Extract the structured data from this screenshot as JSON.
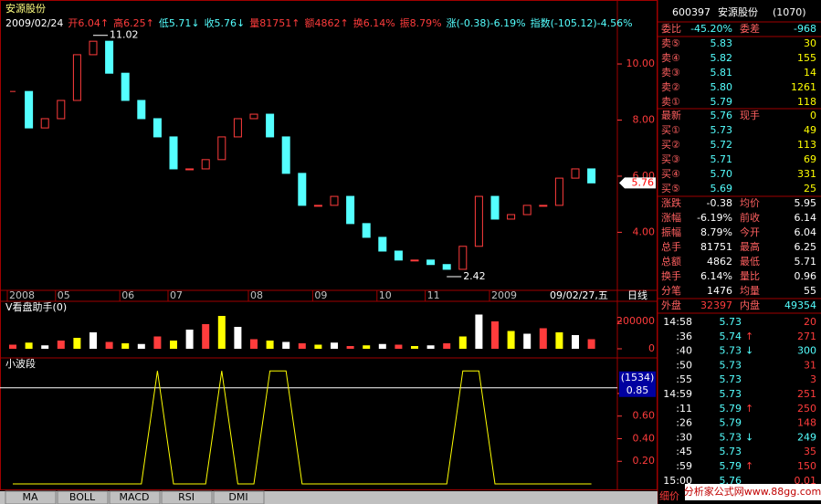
{
  "chart_data": [
    {
      "type": "candlestick",
      "title": "安源股份",
      "categories": [
        "2008",
        null,
        null,
        "05",
        null,
        null,
        null,
        "06",
        null,
        null,
        "07",
        null,
        null,
        null,
        null,
        "08",
        null,
        null,
        null,
        "09",
        null,
        null,
        null,
        "10",
        null,
        null,
        "11",
        null,
        null,
        null,
        "2009",
        null,
        null,
        null,
        null,
        null,
        "09/02/27,五"
      ],
      "values": [
        9.02,
        7.72,
        8.05,
        8.7,
        10.33,
        10.81,
        9.67,
        8.7,
        8.05,
        7.4,
        6.26,
        6.26,
        6.59,
        7.4,
        8.05,
        8.21,
        7.4,
        6.1,
        4.96,
        4.96,
        5.28,
        4.31,
        3.82,
        3.33,
        3.01,
        3.01,
        2.85,
        2.68,
        3.5,
        5.28,
        4.47,
        4.63,
        4.96,
        4.96,
        5.93,
        6.26,
        5.76
      ],
      "up_color": "#ff3c3c",
      "down_color": "#54ffff",
      "ylim": [
        1.93,
        12.28
      ],
      "yticks": [
        {
          "value": 4,
          "label": "4.00"
        },
        {
          "value": 6,
          "label": "6.00"
        },
        {
          "value": 8,
          "label": "8.00"
        },
        {
          "value": 10,
          "label": "10.00"
        }
      ],
      "annotations": [
        {
          "value": 11.02,
          "label": "11.02",
          "index": 5
        },
        {
          "value": 2.42,
          "label": "2.42",
          "index": 27
        }
      ],
      "last_price": {
        "value": 5.76,
        "label": "5.76"
      },
      "period": "日线"
    },
    {
      "type": "bar",
      "title": "V看盘助手(0)",
      "values": [
        30000,
        45000,
        25000,
        60000,
        80000,
        120000,
        50000,
        40000,
        35000,
        90000,
        60000,
        140000,
        180000,
        240000,
        160000,
        70000,
        60000,
        50000,
        40000,
        30000,
        45000,
        20000,
        25000,
        35000,
        30000,
        20000,
        25000,
        40000,
        90000,
        250000,
        200000,
        130000,
        110000,
        150000,
        120000,
        100000,
        70000
      ],
      "colors": [
        "#ff3c3c",
        "#ffff00",
        "#ffffff"
      ],
      "ylim": [
        0,
        280000
      ],
      "yticks": [
        0,
        200000
      ]
    },
    {
      "type": "line",
      "title": "小波段",
      "values": [
        0,
        0,
        0,
        0,
        0,
        0,
        0,
        0,
        0,
        1,
        0,
        0,
        0,
        1,
        0,
        0,
        1,
        1,
        0,
        0,
        0,
        0,
        0,
        0,
        0,
        0,
        0,
        0,
        1,
        1,
        0,
        0,
        0,
        0,
        0,
        0,
        0
      ],
      "colors": [
        "#ffffff",
        "#ffff00"
      ],
      "ylim": [
        0,
        1.05
      ],
      "yticks": [
        {
          "value": 0.2,
          "label": "0.20"
        },
        {
          "value": 0.4,
          "label": "0.40"
        },
        {
          "value": 0.6,
          "label": "0.60"
        },
        {
          "value": 0.8,
          "label": "0.80"
        }
      ],
      "threshold": {
        "value": 0.85,
        "label": "0.85"
      },
      "count_label": "(1534)"
    }
  ],
  "quote_line": [
    "2009/02/24",
    "开6.04↑",
    "高6.25↑",
    "低5.71↓",
    "收5.76↓",
    "量81751↑",
    "额4862↑",
    "换6.14%",
    "振8.79%",
    "涨(-0.38)-6.19%",
    "指数(-105.12)-4.56%"
  ],
  "panel": {
    "code": "600397",
    "name": "安源股份",
    "count": "(1070)",
    "ratio": [
      "委比",
      "-45.20%",
      "委差",
      "-968"
    ],
    "sells": [
      [
        "卖⑤",
        "5.83",
        "30"
      ],
      [
        "卖④",
        "5.82",
        "155"
      ],
      [
        "卖③",
        "5.81",
        "14"
      ],
      [
        "卖②",
        "5.80",
        "1261"
      ],
      [
        "卖①",
        "5.79",
        "118"
      ]
    ],
    "latest": [
      "最新",
      "5.76",
      "现手",
      "0"
    ],
    "buys": [
      [
        "买①",
        "5.73",
        "49"
      ],
      [
        "买②",
        "5.72",
        "113"
      ],
      [
        "买③",
        "5.71",
        "69"
      ],
      [
        "买④",
        "5.70",
        "331"
      ],
      [
        "买⑤",
        "5.69",
        "25"
      ]
    ],
    "stats": [
      [
        "涨跌",
        "-0.38",
        "均价",
        "5.95"
      ],
      [
        "涨幅",
        "-6.19%",
        "前收",
        "6.14"
      ],
      [
        "振幅",
        "8.79%",
        "今开",
        "6.04"
      ],
      [
        "总手",
        "81751",
        "最高",
        "6.25"
      ],
      [
        "总额",
        "4862",
        "最低",
        "5.71"
      ],
      [
        "换手",
        "6.14%",
        "量比",
        "0.96"
      ],
      [
        "分笔",
        "1476",
        "均量",
        "55"
      ]
    ],
    "outer": [
      "外盘",
      "32397",
      "内盘",
      "49354"
    ],
    "trades": [
      [
        "14:58",
        "5.73",
        "",
        "20"
      ],
      [
        ":36",
        "5.74",
        "↑",
        "271"
      ],
      [
        ":40",
        "5.73",
        "↓",
        "300"
      ],
      [
        ":50",
        "5.73",
        "",
        "31"
      ],
      [
        ":55",
        "5.73",
        "",
        "3"
      ],
      [
        "14:59",
        "5.73",
        "",
        "251"
      ],
      [
        ":11",
        "5.79",
        "↑",
        "250"
      ],
      [
        ":26",
        "5.79",
        "",
        "148"
      ],
      [
        ":30",
        "5.73",
        "↓",
        "249"
      ],
      [
        ":45",
        "5.73",
        "",
        "35"
      ],
      [
        ":59",
        "5.79",
        "↑",
        "150"
      ],
      [
        "15:00",
        "5.76",
        "",
        "0.01"
      ]
    ],
    "footer": "细价",
    "watermark": "分析家公式网www.88gg.com"
  },
  "tabs": [
    "MA",
    "BOLL",
    "MACD",
    "RSI",
    "DMI"
  ]
}
